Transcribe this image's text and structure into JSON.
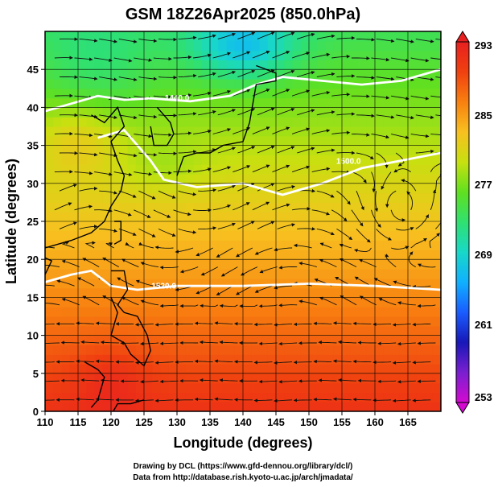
{
  "chart_data": {
    "type": "heatmap",
    "title": "GSM 18Z26Apr2025 (850.0hPa)",
    "xlabel": "Longitude (degrees)",
    "ylabel": "Latitude  (degrees)",
    "xlim": [
      110,
      170
    ],
    "ylim": [
      0,
      50
    ],
    "xticks": [
      "110",
      "115",
      "120",
      "125",
      "130",
      "135",
      "140",
      "145",
      "150",
      "155",
      "160",
      "165"
    ],
    "yticks": [
      "0",
      "5",
      "10",
      "15",
      "20",
      "25",
      "30",
      "35",
      "40",
      "45"
    ],
    "colorbar": {
      "min": 253,
      "max": 293,
      "labels": [
        "293",
        "285",
        "277",
        "269",
        "261",
        "253"
      ],
      "colors": [
        "#d40ad0",
        "#7a1fd0",
        "#1818b8",
        "#1a5cff",
        "#10b0ff",
        "#18d8c8",
        "#30e070",
        "#60e020",
        "#c8e010",
        "#f8c020",
        "#f88010",
        "#f04010",
        "#e82020"
      ]
    },
    "contours": [
      {
        "label": "1440.0"
      },
      {
        "label": "1500.0"
      },
      {
        "label": "1520.0"
      }
    ],
    "footer": {
      "line1": "Drawing by DCL (https://www.gfd-dennou.org/library/dcl/)",
      "line2": "Data from http://database.rish.kyoto-u.ac.jp/arch/jmadata/"
    }
  }
}
